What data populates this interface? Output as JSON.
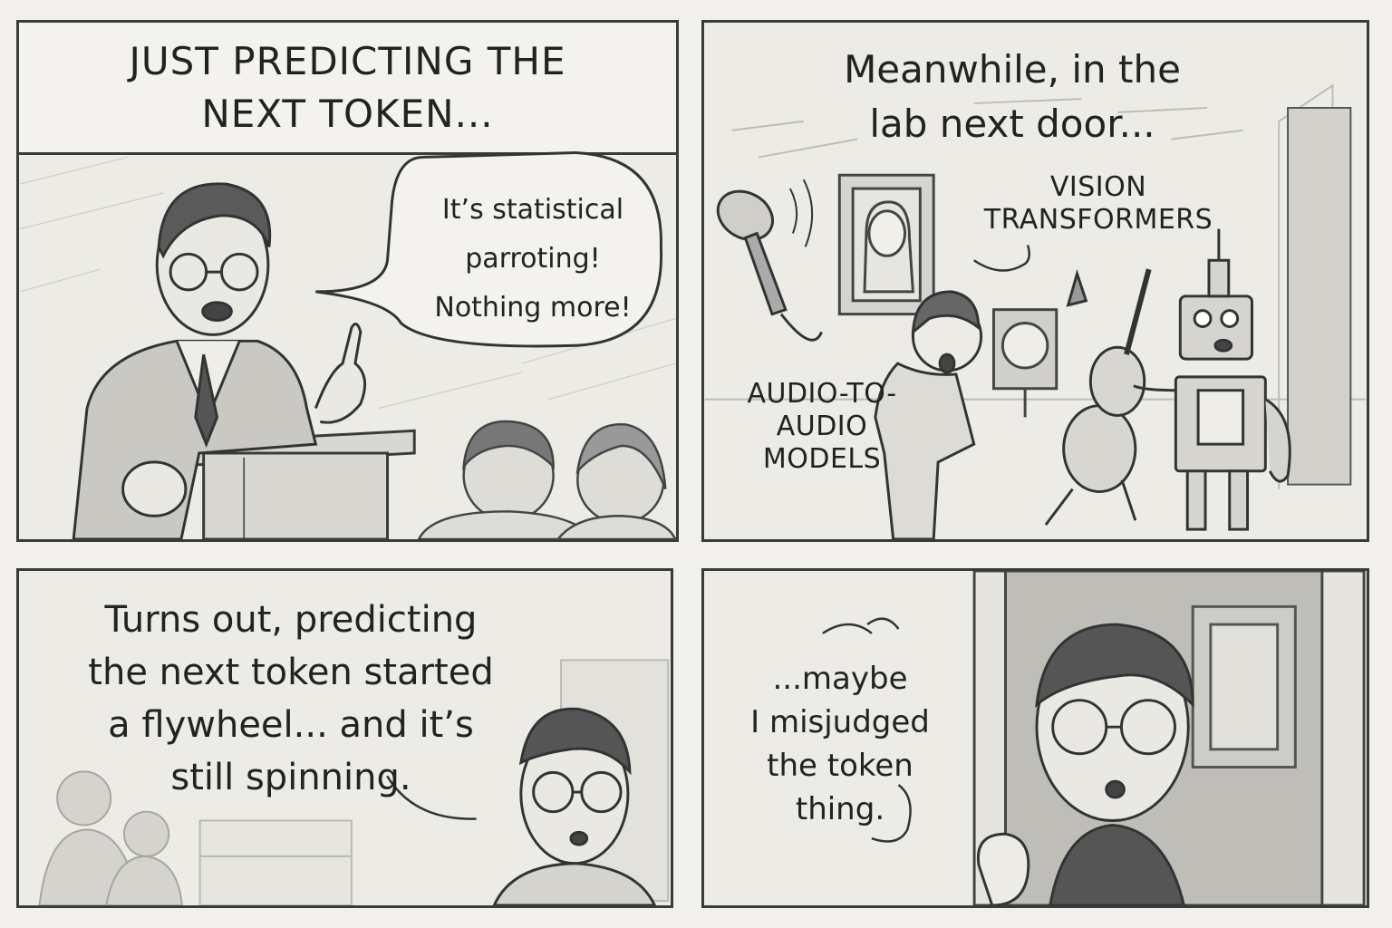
{
  "panel1": {
    "caption": "JUST PREDICTING THE\nNEXT TOKEN...",
    "speech": "It’s statistical\nparroting!\nNothing more!"
  },
  "panel2": {
    "caption": "Meanwhile, in the\nlab next door...",
    "label_vision": "VISION\nTRANSFORMERS",
    "label_audio": "AUDIO-TO-\nAUDIO\nMODELS"
  },
  "panel3": {
    "caption": "Turns out, predicting\nthe next token started\na flywheel... and it’s\nstill spinning."
  },
  "panel4": {
    "speech": "...maybe\nI misjudged\nthe token\nthing."
  }
}
